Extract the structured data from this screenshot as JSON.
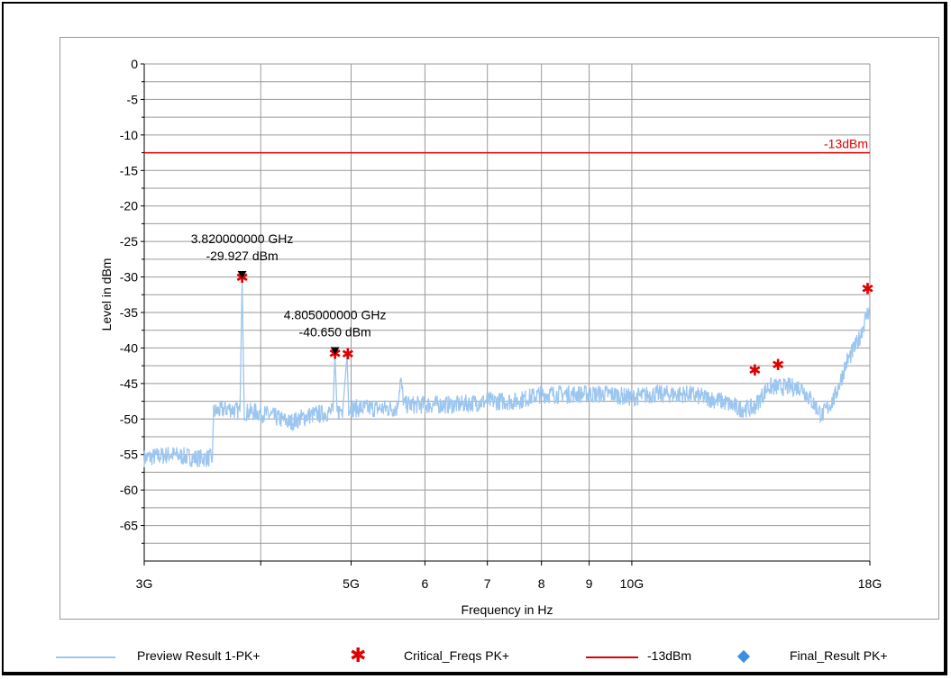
{
  "colors": {
    "trace": "#9cc6f0",
    "limit": "#e00000",
    "critical": "#e00000",
    "final": "#3a8fe0",
    "grid": "#9a9a9a",
    "marker": "#000000"
  },
  "chart_data": {
    "type": "line",
    "title": "",
    "xlabel": "Frequency in Hz",
    "ylabel": "Level in dBm",
    "x_scale": "log",
    "xlim_hz": [
      3000000000,
      18000000000
    ],
    "ylim": [
      -70,
      0
    ],
    "grid": true,
    "x_ticks": [
      {
        "value_hz": 3000000000,
        "label": "3G"
      },
      {
        "value_hz": 4000000000,
        "label": ""
      },
      {
        "value_hz": 5000000000,
        "label": "5G"
      },
      {
        "value_hz": 6000000000,
        "label": "6"
      },
      {
        "value_hz": 7000000000,
        "label": "7"
      },
      {
        "value_hz": 8000000000,
        "label": "8"
      },
      {
        "value_hz": 9000000000,
        "label": "9"
      },
      {
        "value_hz": 10000000000,
        "label": "10G"
      },
      {
        "value_hz": 18000000000,
        "label": "18G"
      }
    ],
    "y_ticks": [
      0,
      -5,
      -10,
      -15,
      -20,
      -25,
      -30,
      -35,
      -40,
      -45,
      -50,
      -55,
      -60,
      -65
    ],
    "series": [
      {
        "name": "Preview Result 1-PK+",
        "style": "line",
        "x_hz": [
          3000000000,
          3200000000,
          3400000000,
          3550000000,
          3560000000,
          3700000000,
          3800000000,
          3820000000,
          3840000000,
          3950000000,
          4100000000,
          4300000000,
          4500000000,
          4780000000,
          4805000000,
          4830000000,
          4900000000,
          4950000000,
          4970000000,
          5000000000,
          5300000000,
          5600000000,
          5650000000,
          5700000000,
          6000000000,
          6500000000,
          7000000000,
          7500000000,
          8000000000,
          8500000000,
          9000000000,
          9500000000,
          10000000000,
          10500000000,
          11000000000,
          11500000000,
          12000000000,
          12500000000,
          13000000000,
          13500000000,
          14000000000,
          14500000000,
          15000000000,
          15200000000,
          15500000000,
          16000000000,
          16500000000,
          17000000000,
          17500000000,
          17900000000,
          18000000000
        ],
        "y": [
          -55.5,
          -55,
          -55.5,
          -55.5,
          -49,
          -48.5,
          -49,
          -30.5,
          -49,
          -49,
          -49.5,
          -50.5,
          -49.5,
          -49,
          -41,
          -49,
          -48.5,
          -41,
          -48.5,
          -48.5,
          -48.5,
          -48.5,
          -44.5,
          -48,
          -48,
          -48,
          -47.5,
          -47.5,
          -46.5,
          -46.5,
          -46.5,
          -46.5,
          -47,
          -46.5,
          -46.5,
          -46.5,
          -47,
          -47.5,
          -48.5,
          -48.5,
          -45.5,
          -45.5,
          -45.5,
          -45.5,
          -47,
          -49.5,
          -47,
          -42,
          -39,
          -35,
          -34.5
        ]
      },
      {
        "name": "Critical_Freqs PK+",
        "style": "star",
        "x_hz": [
          3820000000,
          4805000000,
          4960000000,
          13550000000,
          14350000000,
          17900000000
        ],
        "y": [
          -29.927,
          -40.65,
          -40.7,
          -43,
          -42.2,
          -31.5
        ]
      },
      {
        "name": "-13dBm",
        "style": "hline",
        "value": -12.5,
        "label": "-13dBm"
      },
      {
        "name": "Final_Result PK+",
        "style": "diamond",
        "x_hz": [],
        "y": []
      }
    ],
    "markers": [
      {
        "x_hz": 3820000000,
        "y": -29.927,
        "freq_label": "3.820000000 GHz",
        "level_label": "-29.927 dBm"
      },
      {
        "x_hz": 4805000000,
        "y": -40.65,
        "freq_label": "4.805000000 GHz",
        "level_label": "-40.650 dBm"
      }
    ],
    "legend_position": "bottom"
  }
}
